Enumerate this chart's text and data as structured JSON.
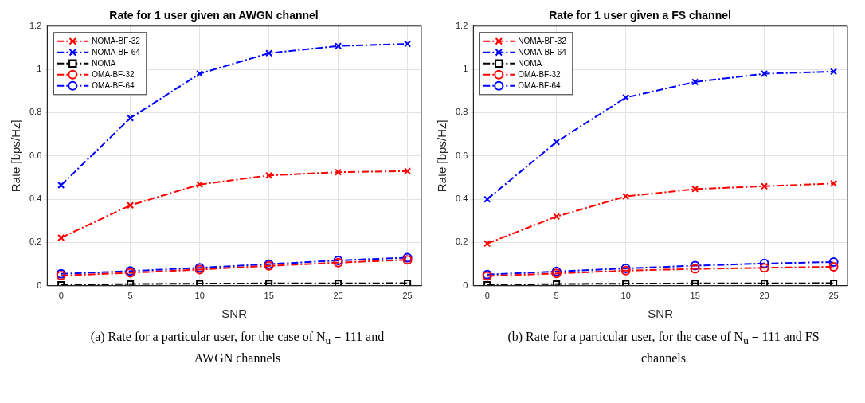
{
  "chart_data": [
    {
      "type": "line",
      "title": "Rate for 1 user given an AWGN channel",
      "xlabel": "SNR",
      "ylabel": "Rate [bps/Hz]",
      "x": [
        0,
        5,
        10,
        15,
        20,
        25
      ],
      "xlim": [
        -1,
        26
      ],
      "xticks": [
        0,
        5,
        10,
        15,
        20,
        25
      ],
      "ylim": [
        0,
        1.2
      ],
      "yticks": [
        0,
        0.2,
        0.4,
        0.6,
        0.8,
        1,
        1.2
      ],
      "grid": true,
      "legend": "top left",
      "line_style": "dashed",
      "annotations": [
        "(a) Rate for a particular user, for the case of N$_{u}$ = 111 and AWGN channels"
      ],
      "series": [
        {
          "name": "NOMA-BF-32",
          "color": "#ff0000",
          "marker": "cross",
          "values": [
            0.222,
            0.372,
            0.468,
            0.51,
            0.525,
            0.53
          ]
        },
        {
          "name": "NOMA-BF-64",
          "color": "#0000ff",
          "marker": "cross",
          "values": [
            0.465,
            0.775,
            0.98,
            1.075,
            1.108,
            1.118
          ]
        },
        {
          "name": "NOMA",
          "color": "#000000",
          "marker": "square",
          "values": [
            0.005,
            0.008,
            0.01,
            0.011,
            0.011,
            0.012
          ]
        },
        {
          "name": "OMA-BF-32",
          "color": "#ff0000",
          "marker": "circle",
          "values": [
            0.047,
            0.06,
            0.075,
            0.092,
            0.107,
            0.12
          ]
        },
        {
          "name": "OMA-BF-64",
          "color": "#0000ff",
          "marker": "circle",
          "values": [
            0.055,
            0.068,
            0.083,
            0.1,
            0.117,
            0.13
          ]
        }
      ]
    },
    {
      "type": "line",
      "title": "Rate for 1 user given a FS channel",
      "xlabel": "SNR",
      "ylabel": "Rate [bps/Hz]",
      "x": [
        0,
        5,
        10,
        15,
        20,
        25
      ],
      "xlim": [
        -1,
        26
      ],
      "xticks": [
        0,
        5,
        10,
        15,
        20,
        25
      ],
      "ylim": [
        0,
        1.2
      ],
      "yticks": [
        0,
        0.2,
        0.4,
        0.6,
        0.8,
        1,
        1.2
      ],
      "grid": true,
      "legend": "top left",
      "line_style": "dashed",
      "annotations": [
        "(b) Rate for a particular user, for the case of N$_{u}$ = 111 and FS channels"
      ],
      "series": [
        {
          "name": "NOMA-BF-32",
          "color": "#ff0000",
          "marker": "cross",
          "values": [
            0.195,
            0.32,
            0.413,
            0.447,
            0.46,
            0.473
          ]
        },
        {
          "name": "NOMA-BF-64",
          "color": "#0000ff",
          "marker": "cross",
          "values": [
            0.4,
            0.665,
            0.87,
            0.942,
            0.98,
            0.99
          ]
        },
        {
          "name": "NOMA",
          "color": "#000000",
          "marker": "square",
          "values": [
            0.005,
            0.008,
            0.01,
            0.011,
            0.011,
            0.012
          ]
        },
        {
          "name": "OMA-BF-32",
          "color": "#ff0000",
          "marker": "circle",
          "values": [
            0.045,
            0.057,
            0.07,
            0.078,
            0.083,
            0.088
          ]
        },
        {
          "name": "OMA-BF-64",
          "color": "#0000ff",
          "marker": "circle",
          "values": [
            0.052,
            0.066,
            0.08,
            0.093,
            0.103,
            0.11
          ]
        }
      ]
    }
  ]
}
